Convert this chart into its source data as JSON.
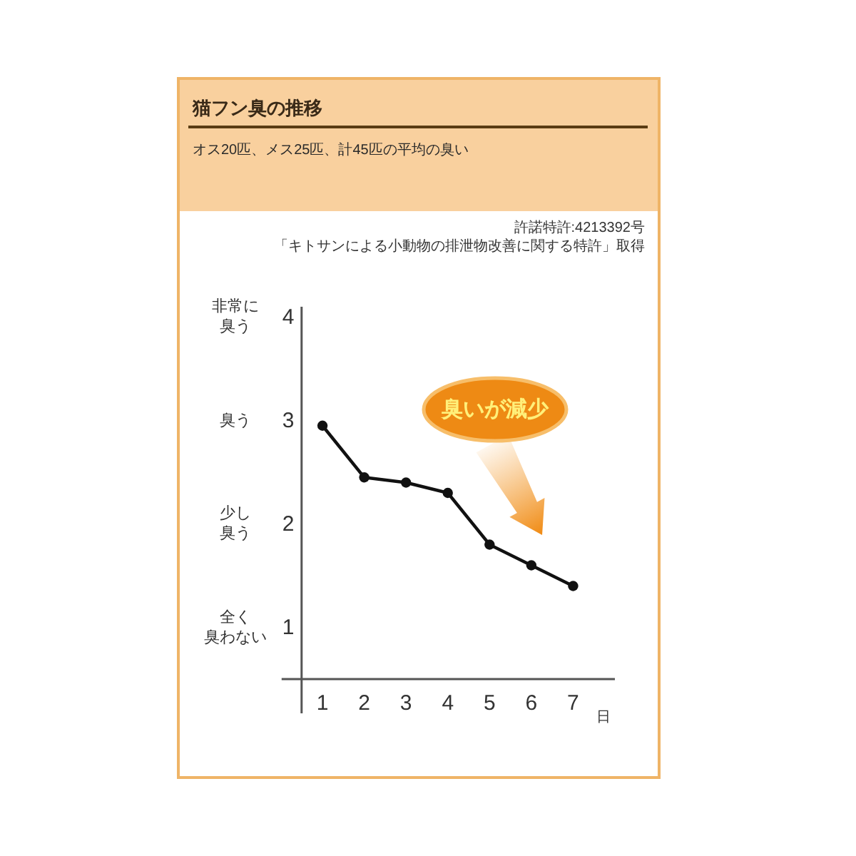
{
  "chart_data": {
    "type": "line",
    "title": "猫フン臭の推移",
    "subtitle": "オス20匹、メス25匹、計45匹の平均の臭い",
    "xlabel": "日",
    "x": [
      1,
      2,
      3,
      4,
      5,
      6,
      7
    ],
    "series": [
      {
        "color": "#111111",
        "values": [
          2.95,
          2.45,
          2.4,
          2.3,
          1.8,
          1.6,
          1.4
        ]
      }
    ],
    "xlim": [
      0.5,
      8
    ],
    "xticks": [
      1,
      2,
      3,
      4,
      5,
      6,
      7
    ],
    "ylim": [
      0.5,
      4.1
    ],
    "yticks": [
      1,
      2,
      3,
      4
    ],
    "marker": "circle",
    "line_style": "solid",
    "annotations": [
      "許諾特許:4213392号",
      "「キトサンによる小動物の排泄物改善に関する特許」取得",
      "非常に臭う",
      "臭う",
      "少し臭う",
      "全く臭わない",
      "臭いが減少"
    ]
  }
}
